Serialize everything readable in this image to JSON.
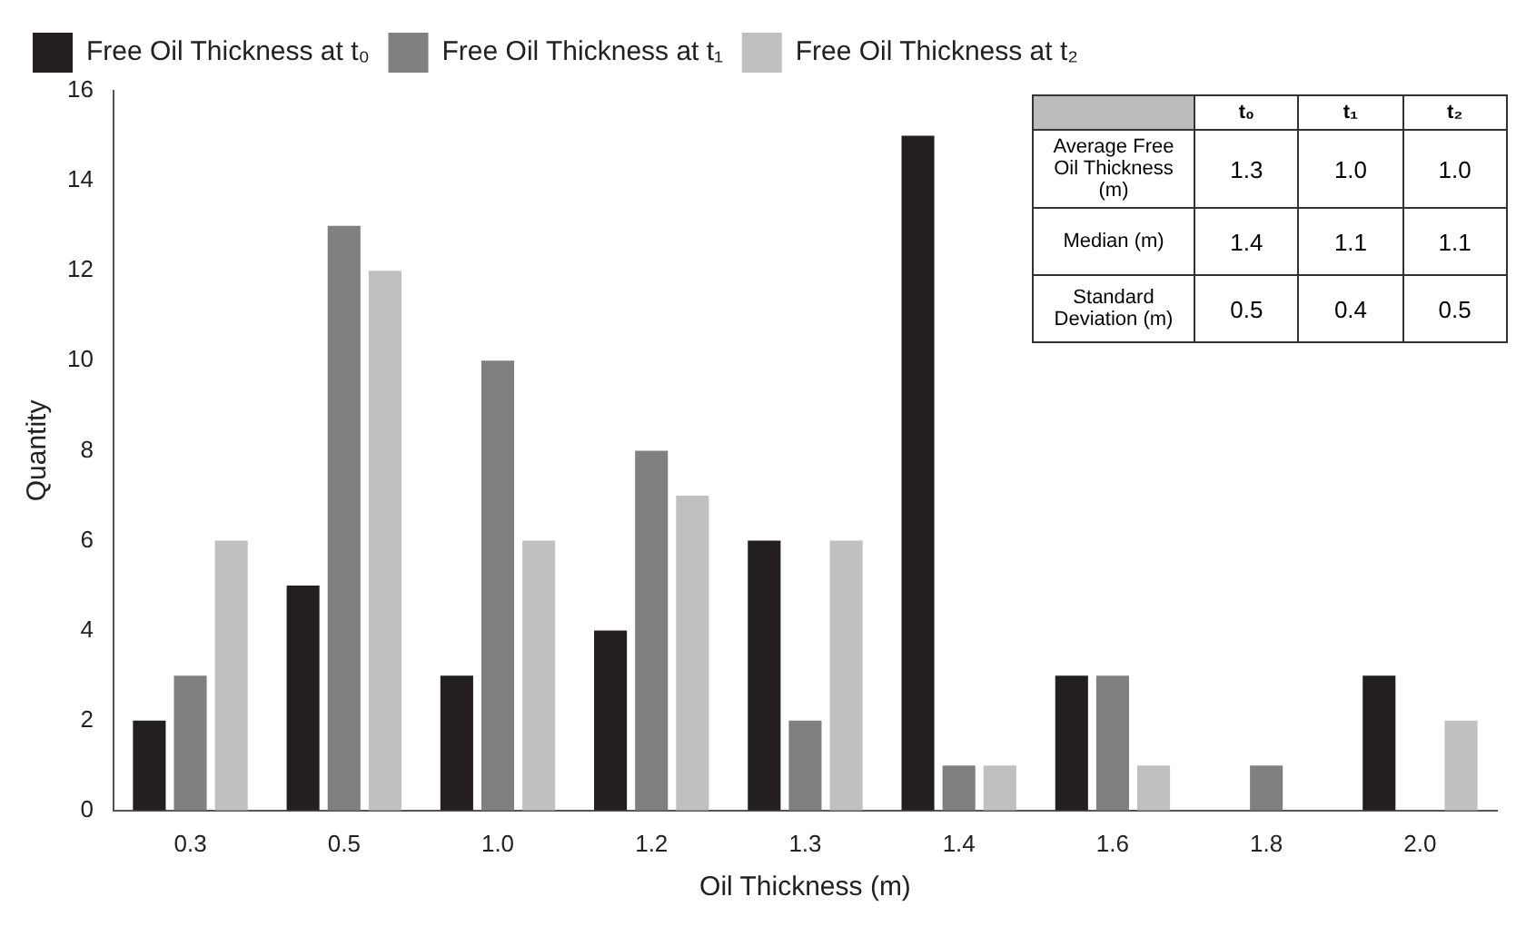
{
  "chart_data": [
    {
      "type": "bar",
      "xlabel": "Oil Thickness (m)",
      "ylabel": "Quantity",
      "categories": [
        "0.3",
        "0.5",
        "1.0",
        "1.2",
        "1.3",
        "1.4",
        "1.6",
        "1.8",
        "2.0"
      ],
      "series": [
        {
          "name": "Free Oil Thickness at t₀",
          "color": "#231f20",
          "values": [
            2,
            5,
            3,
            4,
            6,
            15,
            3,
            0,
            3
          ]
        },
        {
          "name": "Free Oil Thickness at t₁",
          "color": "#808080",
          "values": [
            3,
            13,
            10,
            8,
            2,
            1,
            3,
            1,
            0
          ]
        },
        {
          "name": "Free Oil Thickness at t₂",
          "color": "#c0c0c0",
          "values": [
            6,
            12,
            6,
            7,
            6,
            1,
            1,
            0,
            2
          ]
        }
      ],
      "ylim": [
        0,
        16
      ],
      "yticks": [
        0,
        2,
        4,
        6,
        8,
        10,
        12,
        14,
        16
      ],
      "grid": false,
      "legend": "top left"
    },
    {
      "type": "other",
      "categories": [
        "t₀",
        "t₁",
        "t₂"
      ],
      "y_categories": [
        "Average Free Oil Thickness (m)",
        "Median (m)",
        "Standard Deviation (m)"
      ],
      "cell_labels": [
        [
          "1.3",
          "1.0",
          "1.0"
        ],
        [
          "1.4",
          "1.1",
          "1.1"
        ],
        [
          "0.5",
          "0.4",
          "0.5"
        ]
      ]
    }
  ]
}
